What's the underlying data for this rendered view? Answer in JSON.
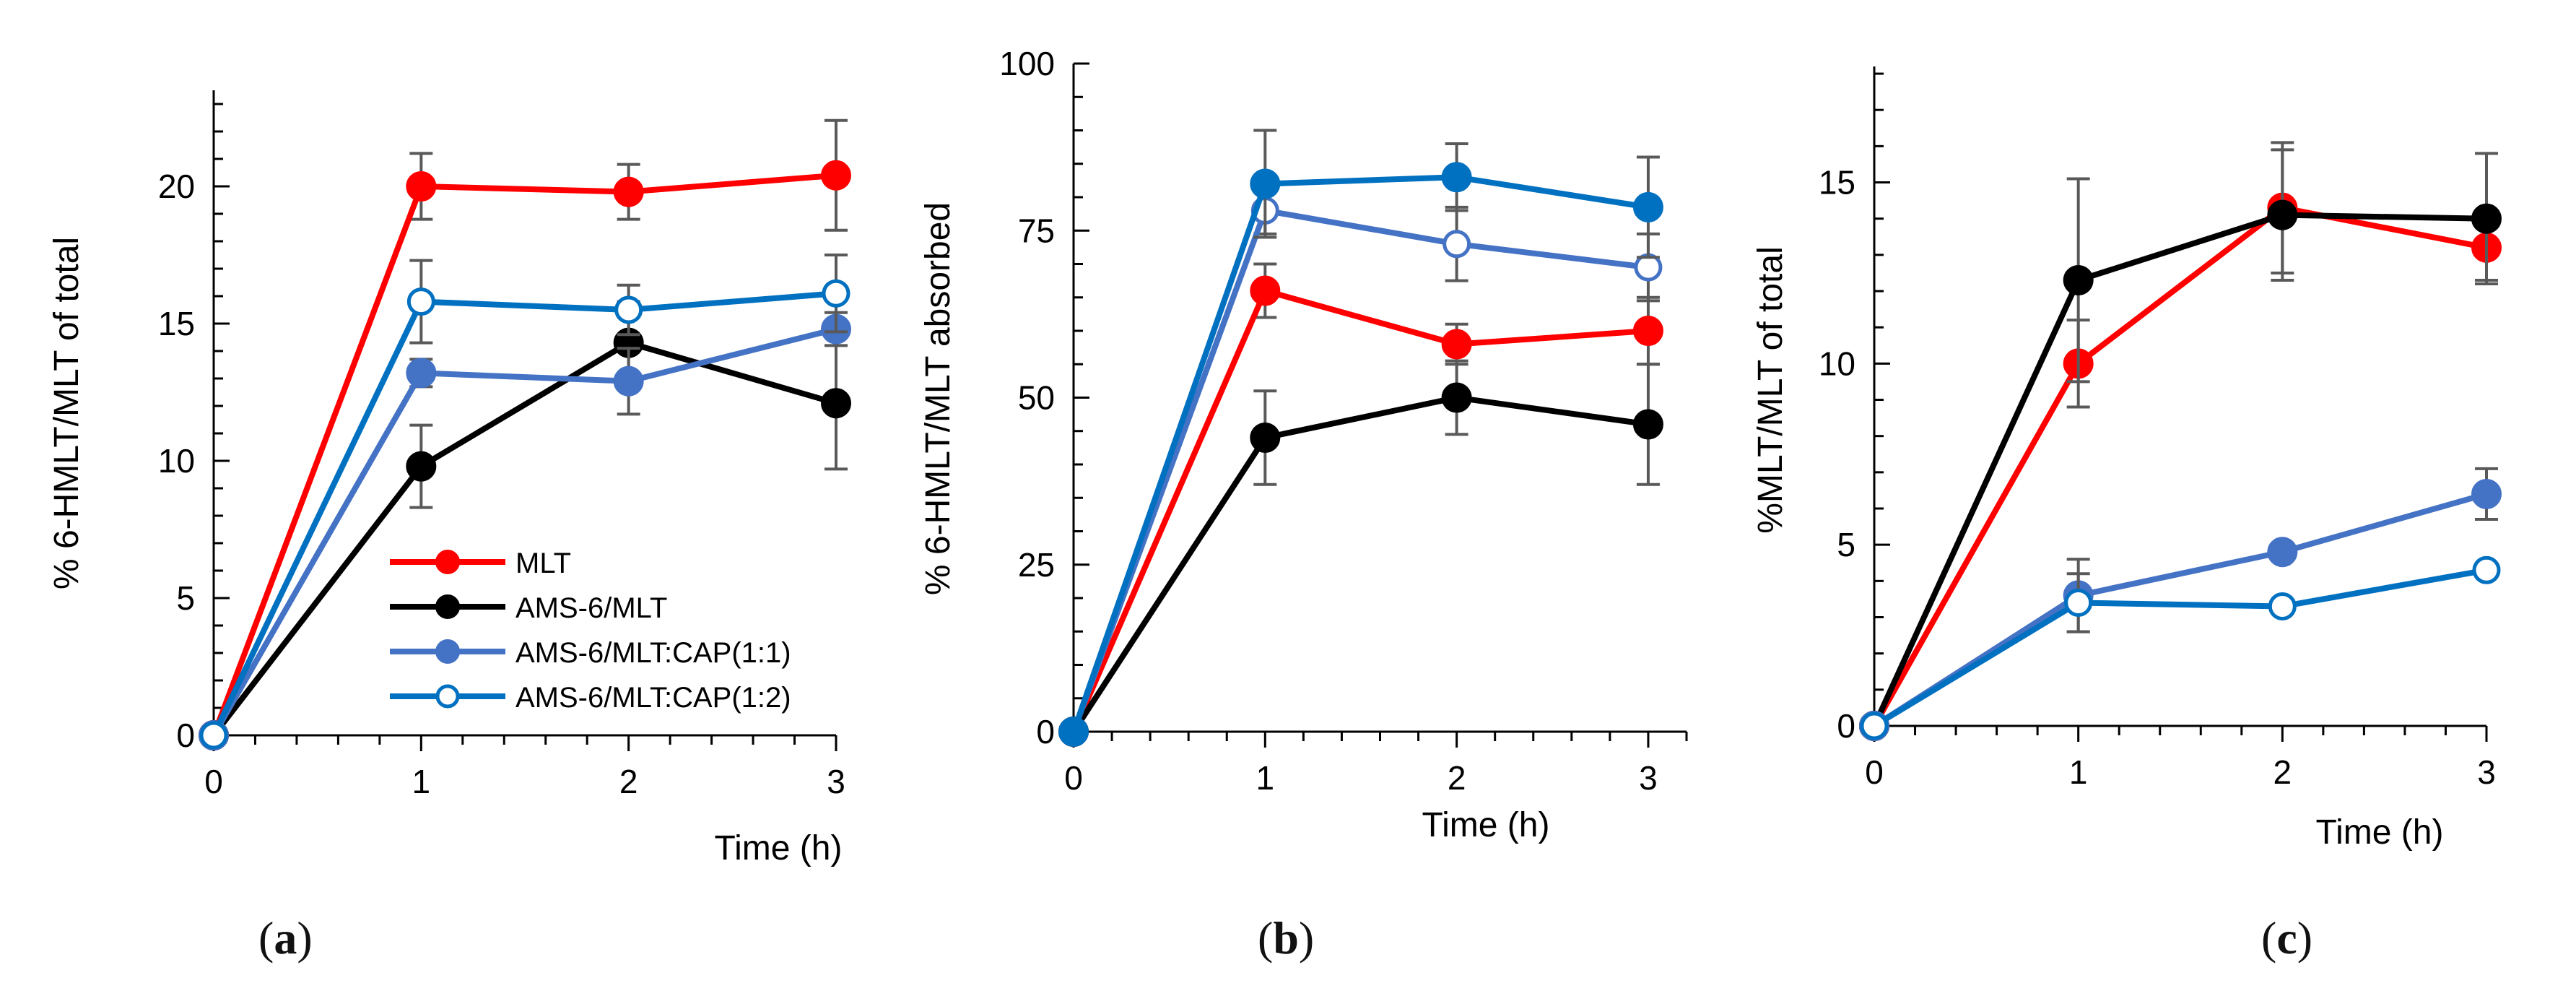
{
  "figure": {
    "captions": [
      "a",
      "b",
      "c"
    ],
    "legend": [
      "MLT",
      "AMS-6/MLT",
      "AMS-6/MLT:CAP(1:1)",
      "AMS-6/MLT:CAP(1:2)"
    ]
  },
  "colors": {
    "MLT": "#ff0000",
    "AMS-6/MLT": "#000000",
    "AMS-6/MLT:CAP(1:1)": "#4472c4",
    "AMS-6/MLT:CAP(1:2)": "#0070c0",
    "errorbar": "#595959",
    "axis": "#000000"
  },
  "chart_data": [
    {
      "type": "line",
      "panel": "a",
      "title": "",
      "xlabel": "Time (h)",
      "ylabel": "% 6-HMLT/MLT of total",
      "x": [
        0,
        1,
        2,
        3
      ],
      "xticks": [
        "0",
        "1",
        "2",
        "3"
      ],
      "xlim": [
        0,
        3
      ],
      "ylim": [
        0,
        23.5
      ],
      "yticks": [
        0,
        5,
        10,
        15,
        20
      ],
      "yticklabels": [
        "0",
        "5",
        "10",
        "15",
        "20"
      ],
      "legend_position": "bottom-right",
      "series": [
        {
          "name": "MLT",
          "values": [
            0,
            20.0,
            19.8,
            20.4
          ],
          "err": [
            0,
            1.2,
            1.0,
            2.0
          ],
          "marker": "filled"
        },
        {
          "name": "AMS-6/MLT",
          "values": [
            0,
            9.8,
            14.3,
            12.1
          ],
          "err": [
            0,
            1.5,
            1.5,
            2.4
          ],
          "marker": "filled"
        },
        {
          "name": "AMS-6/MLT:CAP(1:1)",
          "values": [
            0,
            13.2,
            12.9,
            14.8
          ],
          "err": [
            0,
            0.5,
            1.2,
            0.6
          ],
          "marker": "filled"
        },
        {
          "name": "AMS-6/MLT:CAP(1:2)",
          "values": [
            0,
            15.8,
            15.5,
            16.1
          ],
          "err": [
            0,
            1.5,
            0.9,
            1.4
          ],
          "marker": "open"
        }
      ]
    },
    {
      "type": "line",
      "panel": "b",
      "title": "",
      "xlabel": "Time (h)",
      "ylabel": "% 6-HMLT/MLT absorbed",
      "x": [
        0,
        1,
        2,
        3
      ],
      "xticks": [
        "0",
        "1",
        "2",
        "3"
      ],
      "xlim": [
        0,
        3.2
      ],
      "ylim": [
        0,
        100
      ],
      "yticks": [
        0,
        25,
        50,
        75,
        100
      ],
      "yticklabels": [
        "0",
        "25",
        "50",
        "75",
        "100"
      ],
      "legend_position": "none",
      "series": [
        {
          "name": "MLT",
          "values": [
            0,
            66,
            58,
            60
          ],
          "err": [
            0,
            4,
            3,
            5
          ],
          "marker": "filled"
        },
        {
          "name": "AMS-6/MLT",
          "values": [
            0,
            44,
            50,
            46
          ],
          "err": [
            0,
            7,
            5.5,
            9
          ],
          "marker": "filled"
        },
        {
          "name": "AMS-6/MLT:CAP(1:1)",
          "values": [
            0,
            78,
            73,
            69.5
          ],
          "err": [
            0,
            3.5,
            5.5,
            5
          ],
          "marker": "open"
        },
        {
          "name": "AMS-6/MLT:CAP(1:2)",
          "values": [
            0,
            82,
            83,
            78.5
          ],
          "err": [
            0,
            8,
            5,
            7.5
          ],
          "marker": "filled"
        }
      ]
    },
    {
      "type": "line",
      "panel": "c",
      "title": "",
      "xlabel": "Time (h)",
      "ylabel": "%MLT/MLT of total",
      "x": [
        0,
        1,
        2,
        3
      ],
      "xticks": [
        "0",
        "1",
        "2",
        "3"
      ],
      "xlim": [
        0,
        3
      ],
      "ylim": [
        0,
        18.2
      ],
      "yticks": [
        0,
        5,
        10,
        15
      ],
      "yticklabels": [
        "0",
        "5",
        "10",
        "15"
      ],
      "legend_position": "none",
      "series": [
        {
          "name": "MLT",
          "values": [
            0,
            10.0,
            14.3,
            13.2
          ],
          "err": [
            0,
            1.2,
            1.8,
            0.9
          ],
          "marker": "filled"
        },
        {
          "name": "AMS-6/MLT",
          "values": [
            0,
            12.3,
            14.1,
            14.0
          ],
          "err": [
            0,
            2.8,
            1.8,
            1.8
          ],
          "marker": "filled"
        },
        {
          "name": "AMS-6/MLT:CAP(1:1)",
          "values": [
            0,
            3.6,
            4.8,
            6.4
          ],
          "err": [
            0,
            1.0,
            0,
            0.7
          ],
          "marker": "filled"
        },
        {
          "name": "AMS-6/MLT:CAP(1:2)",
          "values": [
            0,
            3.4,
            3.3,
            4.3
          ],
          "err": [
            0,
            0.8,
            0,
            0
          ],
          "marker": "open"
        }
      ]
    }
  ]
}
